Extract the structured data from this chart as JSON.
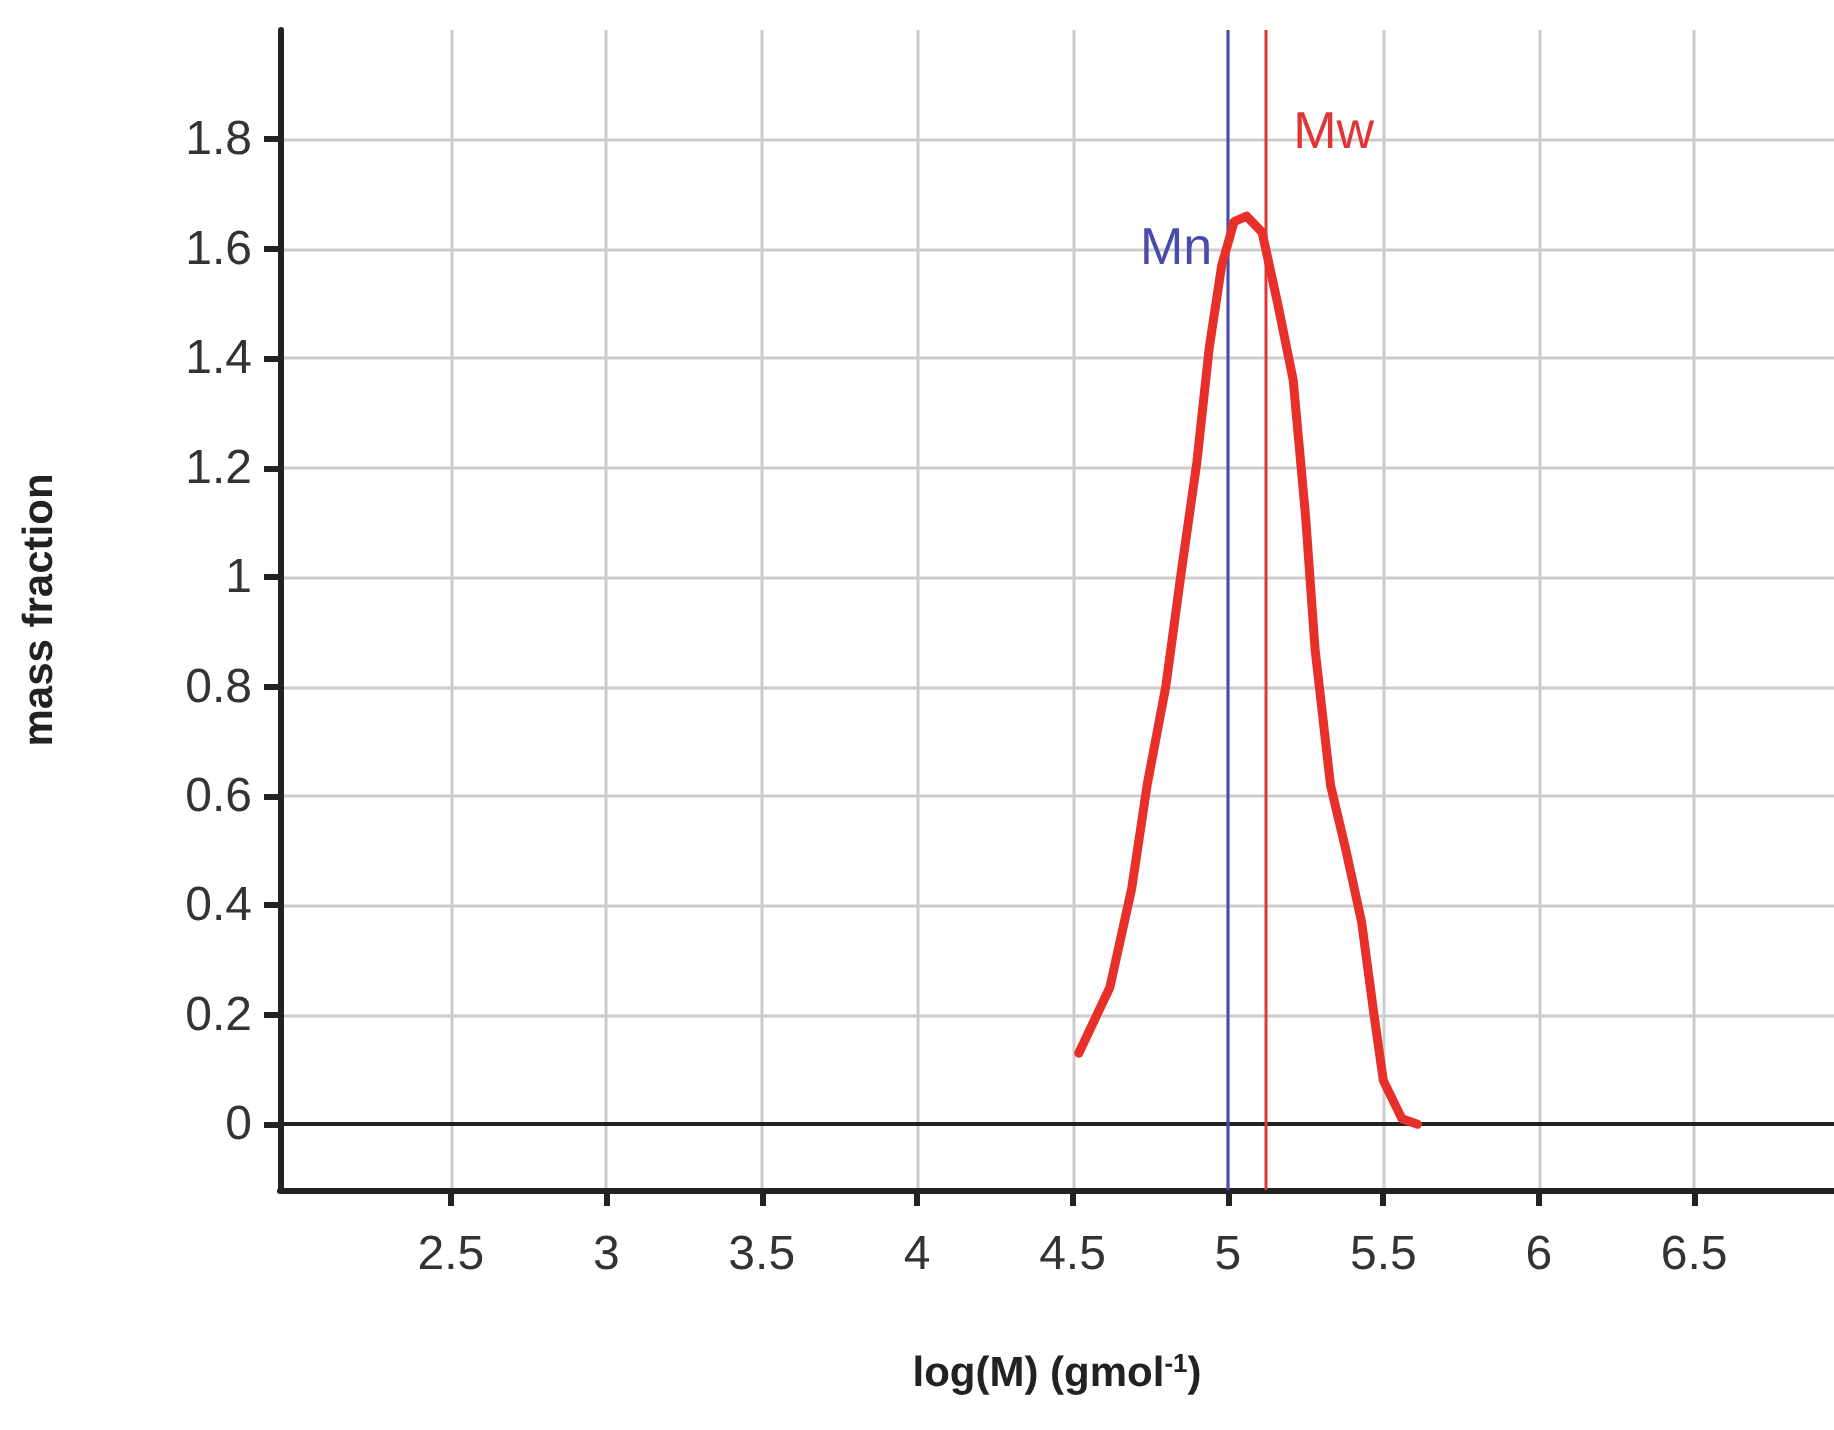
{
  "chart_data": {
    "type": "line",
    "xlabel": "log(M) (gmol$^{-1}$)",
    "ylabel": "mass fraction",
    "xlim": [
      1.95,
      6.95
    ],
    "xticks": [
      2.5,
      3,
      3.5,
      4,
      4.5,
      5,
      5.5,
      6,
      6.5
    ],
    "ylim": [
      -0.12,
      2.0
    ],
    "yticks": [
      0,
      0.2,
      0.4,
      0.6,
      0.8,
      1,
      1.2,
      1.4,
      1.6,
      1.8
    ],
    "grid": true,
    "marker": "none",
    "line_style": "solid",
    "series": [
      {
        "color": "#e8302a",
        "x": [
          4.52,
          4.62,
          4.69,
          4.74,
          4.8,
          4.85,
          4.9,
          4.94,
          4.98,
          5.02,
          5.06,
          5.11,
          5.16,
          5.21,
          5.25,
          5.28,
          5.33,
          5.38,
          5.43,
          5.47,
          5.5,
          5.56,
          5.61
        ],
        "values": [
          0.13,
          0.25,
          0.43,
          0.62,
          0.8,
          1.01,
          1.21,
          1.42,
          1.57,
          1.65,
          1.66,
          1.63,
          1.5,
          1.36,
          1.11,
          0.87,
          0.62,
          0.5,
          0.37,
          0.2,
          0.08,
          0.01,
          0
        ]
      }
    ],
    "ref_lines": [
      {
        "axis": "y",
        "value": 0,
        "label": null,
        "color": "#222222"
      },
      {
        "axis": "x",
        "value": 5.0,
        "label": "Mn",
        "color": "#4a4aaa"
      },
      {
        "axis": "x",
        "value": 5.12,
        "label": "Mw",
        "color": "#e03535"
      }
    ]
  }
}
